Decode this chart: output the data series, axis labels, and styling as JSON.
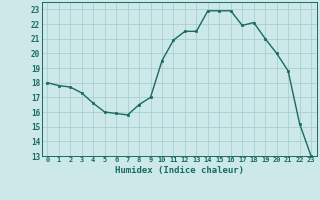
{
  "x": [
    0,
    1,
    2,
    3,
    4,
    5,
    6,
    7,
    8,
    9,
    10,
    11,
    12,
    13,
    14,
    15,
    16,
    17,
    18,
    19,
    20,
    21,
    22,
    23
  ],
  "y": [
    18,
    17.8,
    17.7,
    17.3,
    16.6,
    16.0,
    15.9,
    15.8,
    16.5,
    17.0,
    19.5,
    20.9,
    21.5,
    21.5,
    22.9,
    22.9,
    22.9,
    21.9,
    22.1,
    21.0,
    20.0,
    18.8,
    15.2,
    13.0
  ],
  "line_color": "#1a6b5e",
  "marker": "s",
  "marker_size": 2,
  "line_width": 1.0,
  "bg_color": "#cce8e8",
  "grid_color": "#aacfcf",
  "tick_color": "#1a6b5e",
  "xlabel": "Humidex (Indice chaleur)",
  "ylabel_ticks": [
    13,
    14,
    15,
    16,
    17,
    18,
    19,
    20,
    21,
    22,
    23
  ],
  "xlim": [
    -0.5,
    23.5
  ],
  "ylim": [
    13,
    23.5
  ],
  "xtick_labels": [
    "0",
    "1",
    "2",
    "3",
    "4",
    "5",
    "6",
    "7",
    "8",
    "9",
    "10",
    "11",
    "12",
    "13",
    "14",
    "15",
    "16",
    "17",
    "18",
    "19",
    "20",
    "21",
    "22",
    "23"
  ]
}
